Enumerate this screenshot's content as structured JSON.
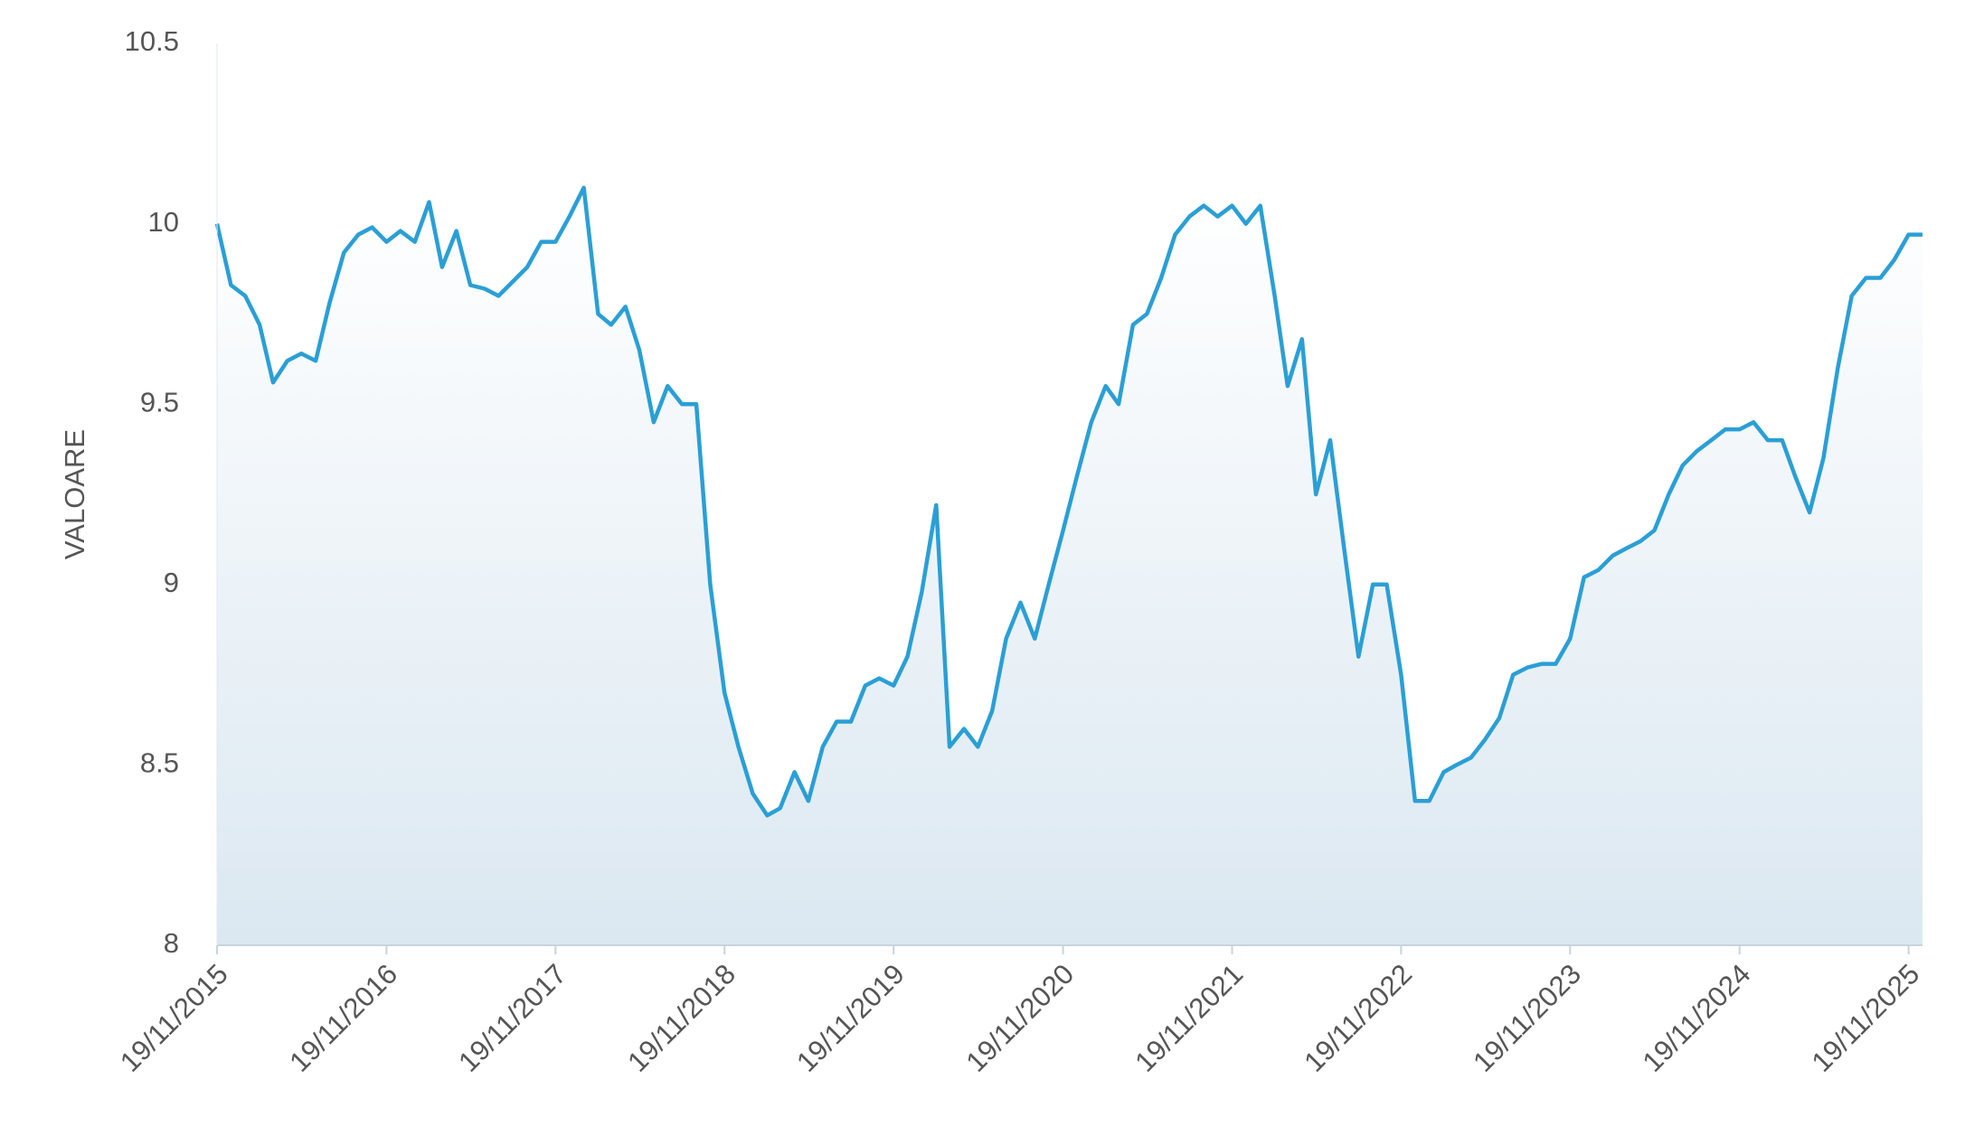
{
  "chart_data": {
    "type": "area",
    "y_label": "VALOARE",
    "color": "#2a9fd6",
    "x": [
      "19/11/2015",
      "19/12/2015",
      "19/01/2016",
      "19/02/2016",
      "19/03/2016",
      "19/04/2016",
      "19/05/2016",
      "19/06/2016",
      "19/07/2016",
      "19/08/2016",
      "19/09/2016",
      "19/10/2016",
      "19/11/2016",
      "19/12/2016",
      "19/01/2017",
      "19/02/2017",
      "19/03/2017",
      "19/04/2017",
      "19/05/2017",
      "19/06/2017",
      "19/07/2017",
      "19/08/2017",
      "19/09/2017",
      "19/10/2017",
      "19/11/2017",
      "19/12/2017",
      "19/01/2018",
      "19/02/2018",
      "19/03/2018",
      "19/04/2018",
      "19/05/2018",
      "19/06/2018",
      "19/07/2018",
      "19/08/2018",
      "19/09/2018",
      "19/10/2018",
      "19/11/2018",
      "19/12/2018",
      "19/01/2019",
      "19/02/2019",
      "19/03/2019",
      "19/04/2019",
      "19/05/2019",
      "19/06/2019",
      "19/07/2019",
      "19/08/2019",
      "19/09/2019",
      "19/10/2019",
      "19/11/2019",
      "19/12/2019",
      "19/01/2020",
      "19/02/2020",
      "19/03/2020",
      "19/04/2020",
      "19/05/2020",
      "19/06/2020",
      "19/07/2020",
      "19/08/2020",
      "19/09/2020",
      "19/10/2020",
      "19/11/2020",
      "19/12/2020",
      "19/01/2021",
      "19/02/2021",
      "19/03/2021",
      "19/04/2021",
      "19/05/2021",
      "19/06/2021",
      "19/07/2021",
      "19/08/2021",
      "19/09/2021",
      "19/10/2021",
      "19/11/2021",
      "19/12/2021",
      "19/01/2022",
      "19/02/2022",
      "19/03/2022",
      "19/04/2022",
      "19/05/2022",
      "19/06/2022",
      "19/07/2022",
      "19/08/2022",
      "19/09/2022",
      "19/10/2022",
      "19/11/2022",
      "19/12/2022",
      "19/01/2023",
      "19/02/2023",
      "19/03/2023",
      "19/04/2023",
      "19/05/2023",
      "19/06/2023",
      "19/07/2023",
      "19/08/2023",
      "19/09/2023",
      "19/10/2023",
      "19/11/2023",
      "19/12/2023",
      "19/01/2024",
      "19/02/2024",
      "19/03/2024",
      "19/04/2024",
      "19/05/2024",
      "19/06/2024",
      "19/07/2024",
      "19/08/2024",
      "19/09/2024",
      "19/10/2024",
      "19/11/2024",
      "19/12/2024",
      "19/01/2025",
      "19/02/2025",
      "19/03/2025",
      "19/04/2025",
      "19/05/2025",
      "19/06/2025",
      "19/07/2025",
      "19/08/2025",
      "19/09/2025",
      "19/10/2025",
      "19/11/2025",
      "19/12/2025"
    ],
    "values": [
      10.0,
      9.83,
      9.8,
      9.72,
      9.56,
      9.62,
      9.64,
      9.62,
      9.78,
      9.92,
      9.97,
      9.99,
      9.95,
      9.98,
      9.95,
      10.06,
      9.88,
      9.98,
      9.83,
      9.82,
      9.8,
      9.84,
      9.88,
      9.95,
      9.95,
      10.02,
      10.1,
      9.75,
      9.72,
      9.77,
      9.65,
      9.45,
      9.55,
      9.5,
      9.5,
      9.0,
      8.7,
      8.55,
      8.42,
      8.36,
      8.38,
      8.48,
      8.4,
      8.55,
      8.62,
      8.62,
      8.72,
      8.74,
      8.72,
      8.8,
      8.98,
      9.22,
      8.55,
      8.6,
      8.55,
      8.65,
      8.85,
      8.95,
      8.85,
      9.0,
      9.15,
      9.3,
      9.45,
      9.55,
      9.5,
      9.72,
      9.75,
      9.85,
      9.97,
      10.02,
      10.05,
      10.02,
      10.05,
      10.0,
      10.05,
      9.8,
      9.55,
      9.68,
      9.25,
      9.4,
      9.1,
      8.8,
      9.0,
      9.0,
      8.75,
      8.4,
      8.4,
      8.48,
      8.5,
      8.52,
      8.57,
      8.63,
      8.75,
      8.77,
      8.78,
      8.78,
      8.85,
      9.02,
      9.04,
      9.08,
      9.1,
      9.12,
      9.15,
      9.25,
      9.33,
      9.37,
      9.4,
      9.43,
      9.43,
      9.45,
      9.4,
      9.4,
      9.3,
      9.2,
      9.35,
      9.6,
      9.8,
      9.85,
      9.85,
      9.9,
      9.97,
      9.97
    ],
    "xlim": [
      "19/11/2015",
      "19/12/2025"
    ],
    "xticks": [
      "19/11/2015",
      "19/11/2016",
      "19/11/2017",
      "19/11/2018",
      "19/11/2019",
      "19/11/2020",
      "19/11/2021",
      "19/11/2022",
      "19/11/2023",
      "19/11/2024",
      "19/11/2025"
    ],
    "ylim": [
      8,
      10.5
    ],
    "yticks": [
      8,
      8.5,
      9,
      9.5,
      10,
      10.5
    ]
  }
}
